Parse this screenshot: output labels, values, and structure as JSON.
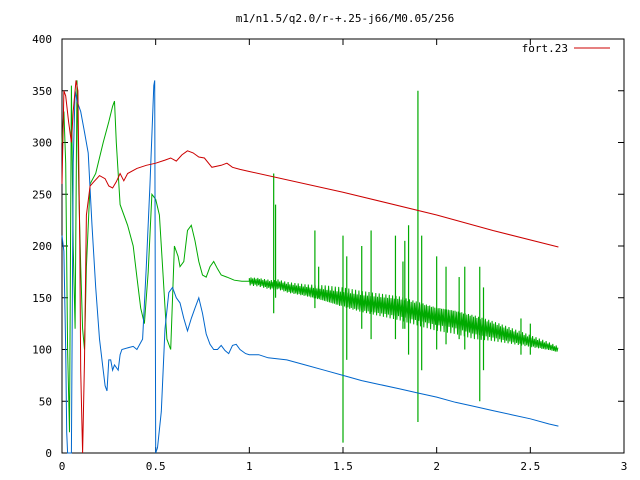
{
  "chart_data": {
    "type": "line",
    "title": "m1/n1.5/q2.0/r-+.25-j66/M0.05/256",
    "xlabel": "",
    "ylabel": "",
    "xlim": [
      0,
      3
    ],
    "ylim": [
      0,
      400
    ],
    "x_ticks": [
      "0",
      "0.5",
      "1",
      "1.5",
      "2",
      "2.5",
      "3"
    ],
    "y_ticks": [
      "0",
      "50",
      "100",
      "150",
      "200",
      "250",
      "300",
      "350",
      "400"
    ],
    "grid": false,
    "legend_position": "top-right",
    "series": [
      {
        "name": "fort.23",
        "color": "#cc0000",
        "points": [
          [
            0.0,
            260
          ],
          [
            0.01,
            350
          ],
          [
            0.02,
            345
          ],
          [
            0.035,
            320
          ],
          [
            0.05,
            300
          ],
          [
            0.06,
            330
          ],
          [
            0.075,
            360
          ],
          [
            0.085,
            350
          ],
          [
            0.095,
            200
          ],
          [
            0.1,
            80
          ],
          [
            0.11,
            0
          ],
          [
            0.12,
            90
          ],
          [
            0.13,
            230
          ],
          [
            0.15,
            258
          ],
          [
            0.17,
            262
          ],
          [
            0.2,
            268
          ],
          [
            0.23,
            265
          ],
          [
            0.25,
            258
          ],
          [
            0.27,
            256
          ],
          [
            0.29,
            262
          ],
          [
            0.31,
            270
          ],
          [
            0.33,
            263
          ],
          [
            0.35,
            270
          ],
          [
            0.4,
            275
          ],
          [
            0.45,
            278
          ],
          [
            0.5,
            280
          ],
          [
            0.55,
            283
          ],
          [
            0.58,
            285
          ],
          [
            0.61,
            282
          ],
          [
            0.64,
            288
          ],
          [
            0.67,
            292
          ],
          [
            0.7,
            290
          ],
          [
            0.73,
            286
          ],
          [
            0.76,
            285
          ],
          [
            0.8,
            276
          ],
          [
            0.85,
            278
          ],
          [
            0.88,
            280
          ],
          [
            0.91,
            276
          ],
          [
            0.95,
            274
          ],
          [
            1.0,
            272
          ],
          [
            1.5,
            252
          ],
          [
            2.0,
            230
          ],
          [
            2.3,
            215
          ],
          [
            2.65,
            199
          ]
        ]
      },
      {
        "name": "",
        "color": "#00aa00",
        "points": [
          [
            0.0,
            300
          ],
          [
            0.01,
            330
          ],
          [
            0.02,
            280
          ],
          [
            0.03,
            100
          ],
          [
            0.04,
            20
          ],
          [
            0.05,
            355
          ],
          [
            0.06,
            200
          ],
          [
            0.07,
            120
          ],
          [
            0.08,
            360
          ],
          [
            0.09,
            250
          ],
          [
            0.1,
            180
          ],
          [
            0.11,
            120
          ],
          [
            0.12,
            100
          ],
          [
            0.13,
            180
          ],
          [
            0.15,
            260
          ],
          [
            0.18,
            270
          ],
          [
            0.22,
            300
          ],
          [
            0.25,
            320
          ],
          [
            0.27,
            335
          ],
          [
            0.28,
            340
          ],
          [
            0.29,
            300
          ],
          [
            0.31,
            240
          ],
          [
            0.35,
            220
          ],
          [
            0.38,
            200
          ],
          [
            0.4,
            170
          ],
          [
            0.42,
            140
          ],
          [
            0.44,
            125
          ],
          [
            0.46,
            175
          ],
          [
            0.48,
            250
          ],
          [
            0.5,
            245
          ],
          [
            0.52,
            230
          ],
          [
            0.54,
            170
          ],
          [
            0.56,
            110
          ],
          [
            0.58,
            100
          ],
          [
            0.6,
            200
          ],
          [
            0.62,
            190
          ],
          [
            0.63,
            180
          ],
          [
            0.65,
            185
          ],
          [
            0.67,
            215
          ],
          [
            0.69,
            220
          ],
          [
            0.71,
            205
          ],
          [
            0.73,
            185
          ],
          [
            0.75,
            172
          ],
          [
            0.77,
            170
          ],
          [
            0.79,
            180
          ],
          [
            0.81,
            185
          ],
          [
            0.83,
            178
          ],
          [
            0.85,
            172
          ],
          [
            0.88,
            170
          ],
          [
            0.92,
            167
          ],
          [
            0.96,
            166
          ],
          [
            1.0,
            166
          ],
          [
            1.05,
            165
          ],
          [
            1.1,
            163
          ],
          [
            1.13,
            162
          ],
          [
            1.15,
            163
          ],
          [
            1.2,
            160
          ],
          [
            1.3,
            157
          ],
          [
            1.4,
            154
          ],
          [
            1.5,
            150
          ],
          [
            1.6,
            146
          ],
          [
            1.7,
            143
          ],
          [
            1.8,
            140
          ],
          [
            1.9,
            135
          ],
          [
            2.0,
            130
          ],
          [
            2.1,
            127
          ],
          [
            2.2,
            122
          ],
          [
            2.3,
            118
          ],
          [
            2.4,
            113
          ],
          [
            2.5,
            108
          ],
          [
            2.6,
            103
          ],
          [
            2.65,
            100
          ]
        ],
        "spikes": [
          [
            1.13,
            135,
            270
          ],
          [
            1.14,
            150,
            240
          ],
          [
            1.35,
            140,
            215
          ],
          [
            1.37,
            150,
            180
          ],
          [
            1.5,
            10,
            210
          ],
          [
            1.52,
            90,
            190
          ],
          [
            1.6,
            120,
            200
          ],
          [
            1.65,
            110,
            215
          ],
          [
            1.78,
            110,
            210
          ],
          [
            1.82,
            120,
            185
          ],
          [
            1.83,
            120,
            205
          ],
          [
            1.85,
            95,
            220
          ],
          [
            1.9,
            30,
            350
          ],
          [
            1.92,
            80,
            210
          ],
          [
            2.0,
            100,
            190
          ],
          [
            2.05,
            105,
            180
          ],
          [
            2.12,
            110,
            170
          ],
          [
            2.15,
            100,
            180
          ],
          [
            2.23,
            50,
            180
          ],
          [
            2.25,
            80,
            160
          ],
          [
            2.45,
            95,
            130
          ],
          [
            2.5,
            95,
            125
          ]
        ],
        "noise": [
          [
            1.0,
            4
          ],
          [
            1.3,
            6
          ],
          [
            1.5,
            10
          ],
          [
            1.8,
            12
          ],
          [
            2.2,
            12
          ],
          [
            2.4,
            8
          ],
          [
            2.65,
            3
          ]
        ]
      },
      {
        "name": "",
        "color": "#0066cc",
        "points": [
          [
            0.0,
            210
          ],
          [
            0.01,
            195
          ],
          [
            0.02,
            100
          ],
          [
            0.025,
            20
          ],
          [
            0.03,
            0
          ],
          [
            0.05,
            0
          ],
          [
            0.06,
            280
          ],
          [
            0.07,
            350
          ],
          [
            0.08,
            340
          ],
          [
            0.1,
            330
          ],
          [
            0.12,
            310
          ],
          [
            0.14,
            290
          ],
          [
            0.16,
            220
          ],
          [
            0.18,
            160
          ],
          [
            0.2,
            110
          ],
          [
            0.22,
            80
          ],
          [
            0.23,
            65
          ],
          [
            0.24,
            60
          ],
          [
            0.25,
            90
          ],
          [
            0.26,
            90
          ],
          [
            0.27,
            80
          ],
          [
            0.28,
            85
          ],
          [
            0.3,
            80
          ],
          [
            0.31,
            95
          ],
          [
            0.32,
            100
          ],
          [
            0.36,
            102
          ],
          [
            0.38,
            103
          ],
          [
            0.4,
            100
          ],
          [
            0.43,
            110
          ],
          [
            0.45,
            180
          ],
          [
            0.47,
            260
          ],
          [
            0.49,
            355
          ],
          [
            0.495,
            360
          ],
          [
            0.5,
            0
          ],
          [
            0.51,
            5
          ],
          [
            0.53,
            40
          ],
          [
            0.55,
            120
          ],
          [
            0.57,
            155
          ],
          [
            0.59,
            160
          ],
          [
            0.61,
            150
          ],
          [
            0.63,
            145
          ],
          [
            0.65,
            130
          ],
          [
            0.67,
            118
          ],
          [
            0.69,
            130
          ],
          [
            0.71,
            140
          ],
          [
            0.73,
            150
          ],
          [
            0.75,
            135
          ],
          [
            0.77,
            115
          ],
          [
            0.79,
            105
          ],
          [
            0.81,
            100
          ],
          [
            0.83,
            100
          ],
          [
            0.85,
            104
          ],
          [
            0.87,
            99
          ],
          [
            0.89,
            96
          ],
          [
            0.91,
            104
          ],
          [
            0.93,
            105
          ],
          [
            0.95,
            100
          ],
          [
            0.98,
            96
          ],
          [
            1.0,
            95
          ],
          [
            1.05,
            95
          ],
          [
            1.1,
            92
          ],
          [
            1.2,
            90
          ],
          [
            1.3,
            85
          ],
          [
            1.4,
            80
          ],
          [
            1.5,
            75
          ],
          [
            1.6,
            70
          ],
          [
            1.7,
            66
          ],
          [
            1.8,
            62
          ],
          [
            1.9,
            58
          ],
          [
            2.0,
            54
          ],
          [
            2.1,
            49
          ],
          [
            2.2,
            45
          ],
          [
            2.3,
            41
          ],
          [
            2.4,
            37
          ],
          [
            2.5,
            33
          ],
          [
            2.6,
            28
          ],
          [
            2.65,
            26
          ]
        ]
      }
    ]
  }
}
